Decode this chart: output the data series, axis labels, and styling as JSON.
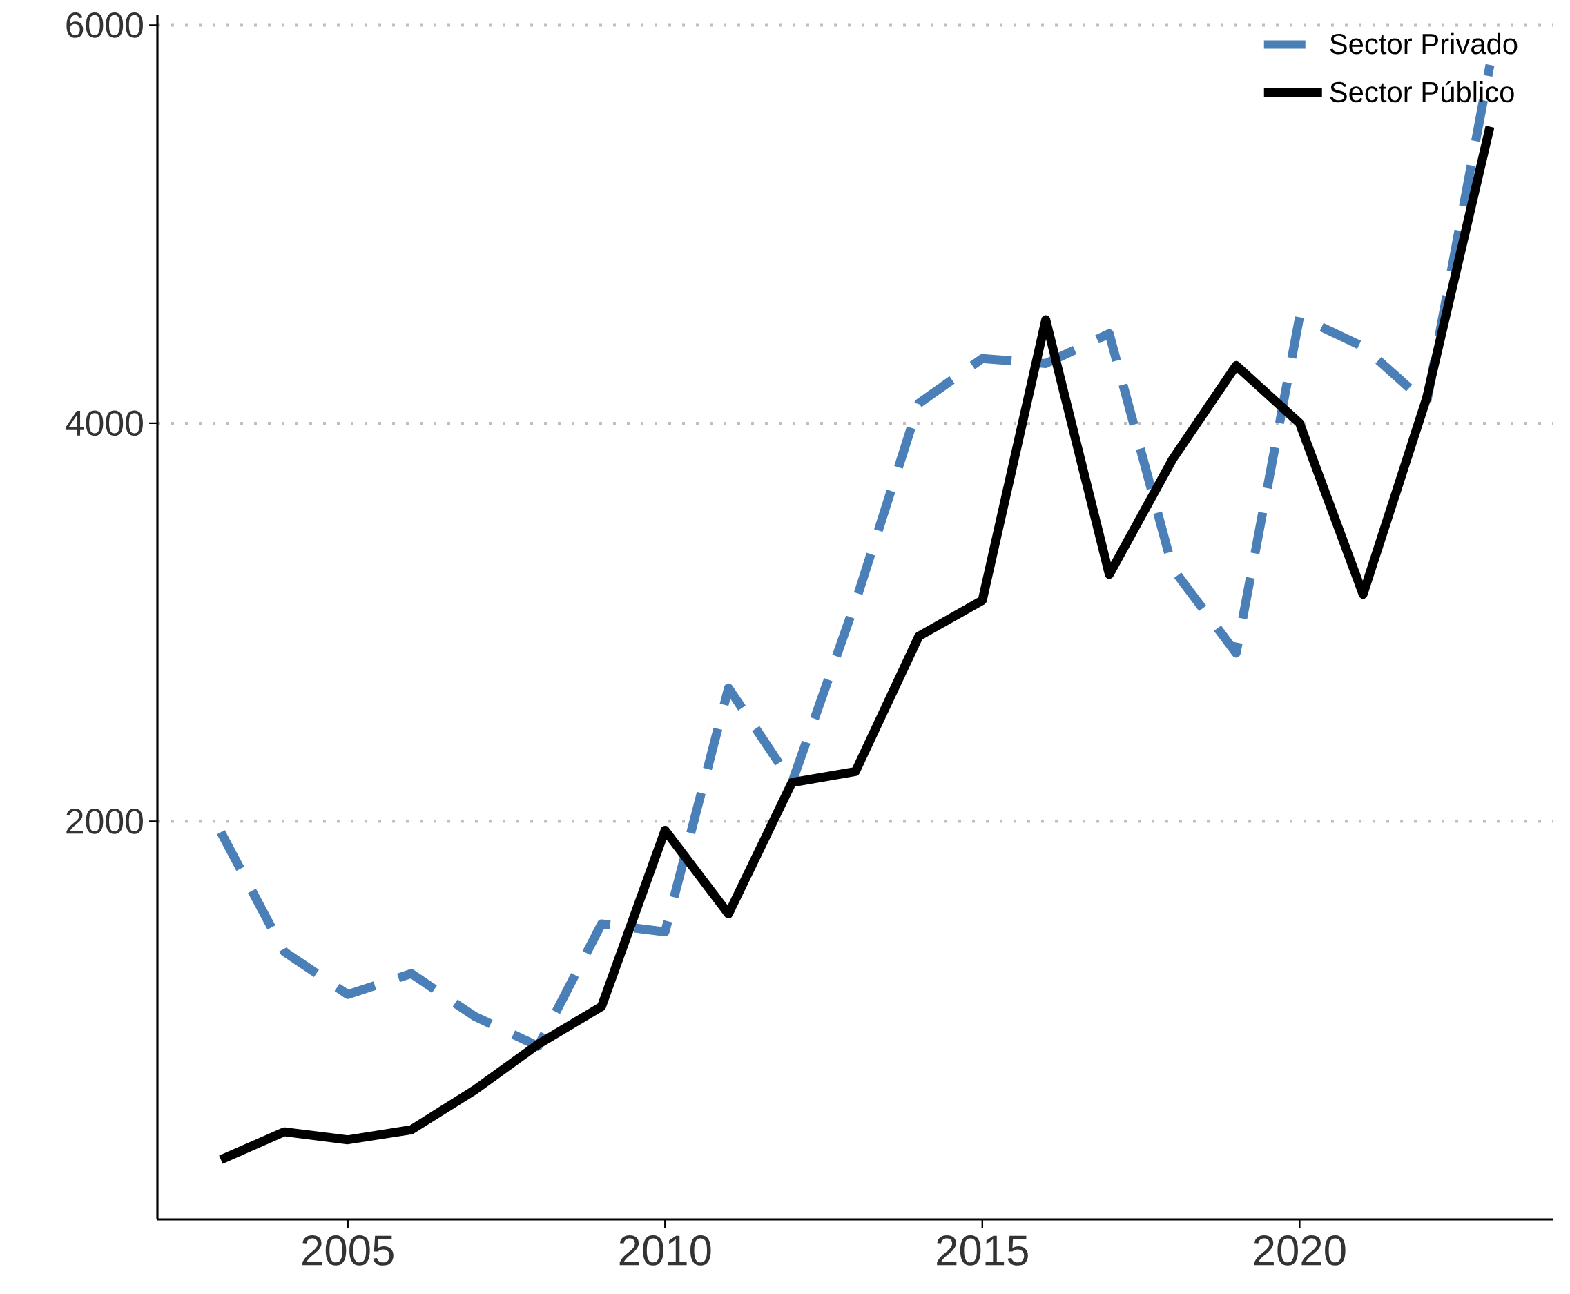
{
  "chart_data": {
    "type": "line",
    "x": [
      2003,
      2004,
      2005,
      2006,
      2007,
      2008,
      2009,
      2010,
      2011,
      2012,
      2013,
      2014,
      2015,
      2016,
      2017,
      2018,
      2019,
      2020,
      2021,
      2022,
      2023
    ],
    "series": [
      {
        "name": "Sector Privado",
        "color": "#4a7fb8",
        "line_style": "dashed",
        "values": [
          1945,
          1345,
          1130,
          1235,
          1020,
          870,
          1485,
          1445,
          2670,
          2195,
          3100,
          4100,
          4325,
          4300,
          4450,
          3270,
          2845,
          4535,
          4385,
          4100,
          5800
        ]
      },
      {
        "name": "Sector Público",
        "color": "#000000",
        "line_style": "solid",
        "values": [
          300,
          440,
          400,
          450,
          650,
          880,
          1070,
          1955,
          1535,
          2195,
          2250,
          2930,
          3110,
          4520,
          3240,
          3820,
          4290,
          4000,
          3140,
          4125,
          5490
        ]
      }
    ],
    "xlim": [
      2002,
      2024
    ],
    "ylim": [
      0,
      6050
    ],
    "xticks": [
      2005,
      2010,
      2015,
      2020
    ],
    "yticks": [
      2000,
      4000,
      6000
    ],
    "grid": "y",
    "legend": "top right"
  }
}
